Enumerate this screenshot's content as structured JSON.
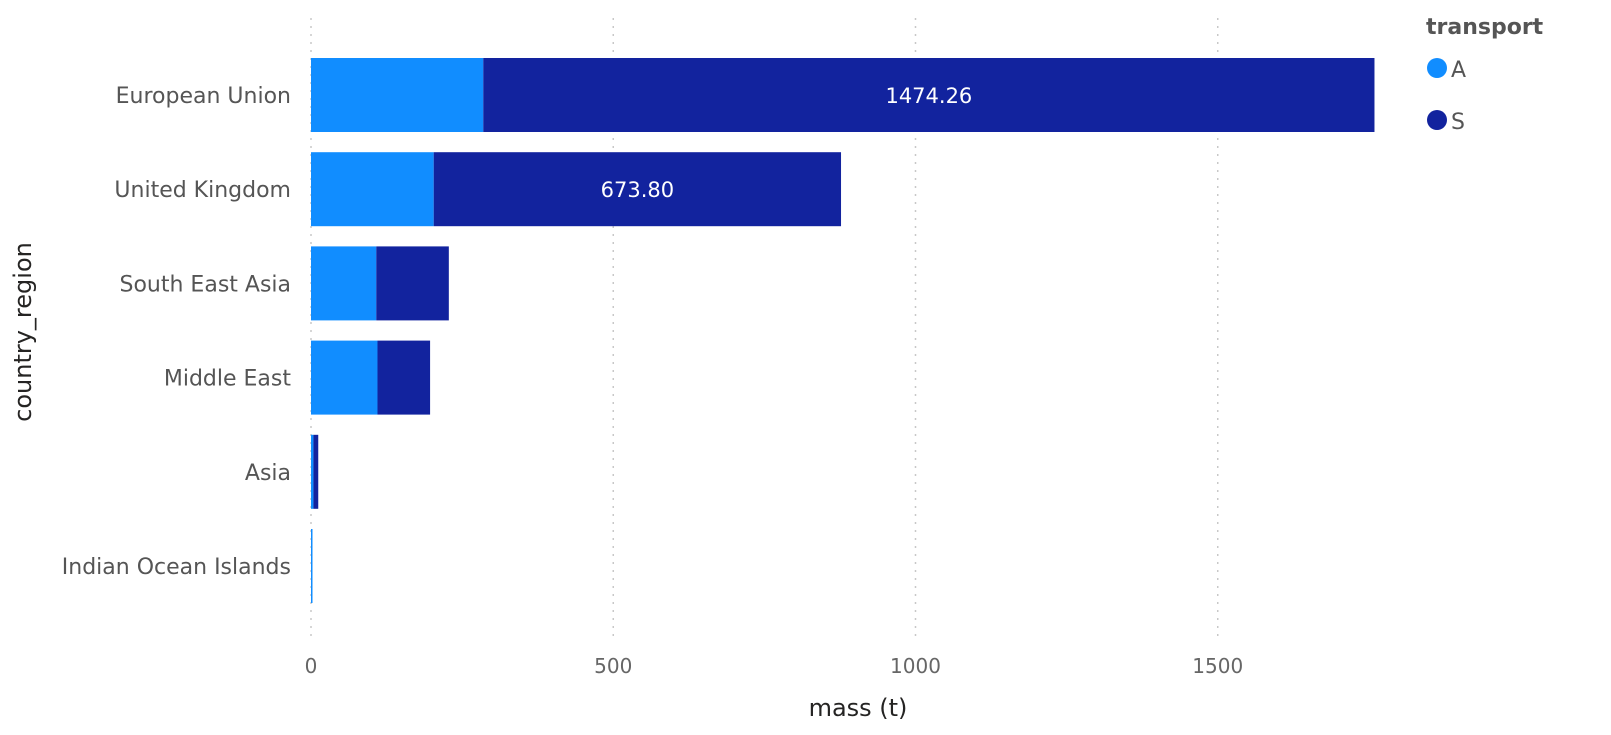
{
  "chart_data": {
    "type": "bar",
    "orientation": "horizontal",
    "stacked": true,
    "xlabel": "mass (t)",
    "ylabel": "country_region",
    "xlim": [
      0,
      1900
    ],
    "xticks": [
      0,
      500,
      1000,
      1500
    ],
    "grid": true,
    "legend": {
      "title": "transport",
      "placement": "top-right"
    },
    "categories": [
      "European Union",
      "United Kingdom",
      "South East Asia",
      "Middle East",
      "Asia",
      "Indian Ocean Islands"
    ],
    "series": [
      {
        "name": "A",
        "color": "#118DFF",
        "values": [
          285,
          203,
          108,
          110,
          4,
          2
        ]
      },
      {
        "name": "S",
        "color": "#12239E",
        "values": [
          1474.26,
          673.8,
          120,
          87,
          8,
          0
        ]
      }
    ],
    "data_labels": [
      {
        "series": "S",
        "category": "European Union",
        "text": "1474.26"
      },
      {
        "series": "S",
        "category": "United Kingdom",
        "text": "673.80"
      }
    ]
  }
}
